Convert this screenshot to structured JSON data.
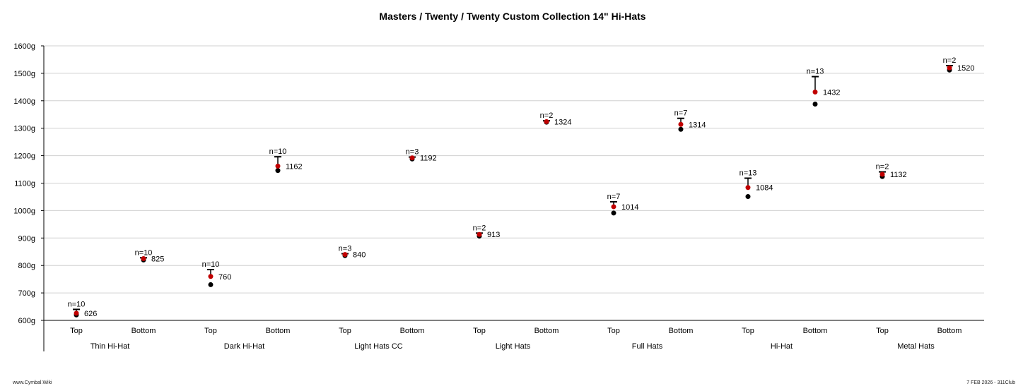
{
  "chart_data": {
    "type": "scatter",
    "title": "Masters / Twenty / Twenty Custom Collection 14\" Hi-Hats",
    "ylim": [
      600,
      1600
    ],
    "y_ticks": [
      "600g",
      "700g",
      "800g",
      "900g",
      "1000g",
      "1100g",
      "1200g",
      "1300g",
      "1400g",
      "1500g",
      "1600g"
    ],
    "grid": true,
    "groups": [
      "Thin Hi-Hat",
      "Dark Hi-Hat",
      "Light Hats CC",
      "Light Hats",
      "Full Hats",
      "Hi-Hat",
      "Metal Hats"
    ],
    "positions": [
      "Top",
      "Bottom"
    ],
    "points": [
      {
        "group": "Thin Hi-Hat",
        "position": "Top",
        "n": "n=10",
        "mean": 626,
        "min": 620,
        "max": 640,
        "label": "626"
      },
      {
        "group": "Thin Hi-Hat",
        "position": "Bottom",
        "n": "n=10",
        "mean": 825,
        "min": 820,
        "max": 828,
        "label": "825"
      },
      {
        "group": "Dark Hi-Hat",
        "position": "Top",
        "n": "n=10",
        "mean": 760,
        "min": 730,
        "max": 785,
        "label": "760"
      },
      {
        "group": "Dark Hi-Hat",
        "position": "Bottom",
        "n": "n=10",
        "mean": 1162,
        "min": 1146,
        "max": 1196,
        "label": "1162"
      },
      {
        "group": "Light Hats CC",
        "position": "Top",
        "n": "n=3",
        "mean": 840,
        "min": 836,
        "max": 843,
        "label": "840"
      },
      {
        "group": "Light Hats CC",
        "position": "Bottom",
        "n": "n=3",
        "mean": 1192,
        "min": 1188,
        "max": 1195,
        "label": "1192"
      },
      {
        "group": "Light Hats",
        "position": "Top",
        "n": "n=2",
        "mean": 913,
        "min": 907,
        "max": 918,
        "label": "913"
      },
      {
        "group": "Light Hats",
        "position": "Bottom",
        "n": "n=2",
        "mean": 1324,
        "min": 1322,
        "max": 1327,
        "label": "1324"
      },
      {
        "group": "Full Hats",
        "position": "Top",
        "n": "n=7",
        "mean": 1014,
        "min": 991,
        "max": 1032,
        "label": "1014"
      },
      {
        "group": "Full Hats",
        "position": "Bottom",
        "n": "n=7",
        "mean": 1314,
        "min": 1296,
        "max": 1336,
        "label": "1314"
      },
      {
        "group": "Hi-Hat",
        "position": "Top",
        "n": "n=13",
        "mean": 1084,
        "min": 1051,
        "max": 1118,
        "label": "1084"
      },
      {
        "group": "Hi-Hat",
        "position": "Bottom",
        "n": "n=13",
        "mean": 1432,
        "min": 1388,
        "max": 1488,
        "label": "1432"
      },
      {
        "group": "Metal Hats",
        "position": "Top",
        "n": "n=2",
        "mean": 1132,
        "min": 1124,
        "max": 1141,
        "label": "1132"
      },
      {
        "group": "Metal Hats",
        "position": "Bottom",
        "n": "n=2",
        "mean": 1520,
        "min": 1512,
        "max": 1528,
        "label": "1520"
      }
    ],
    "colors": {
      "mean": "#c00000",
      "min": "#000000",
      "grid": "#d0d0d0",
      "axis": "#000000"
    }
  },
  "footer": {
    "left": "www.Cymbal.Wiki",
    "right": "7 FEB 2026 - 311Club"
  }
}
